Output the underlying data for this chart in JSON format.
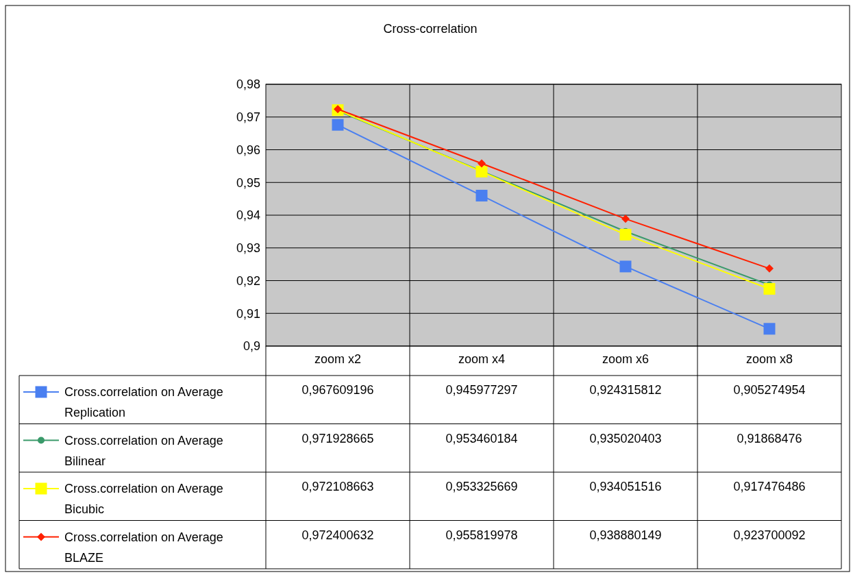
{
  "chart_data": {
    "type": "line",
    "title": "Cross-correlation",
    "categories": [
      "zoom x2",
      "zoom x4",
      "zoom x6",
      "zoom x8"
    ],
    "series": [
      {
        "name": "Cross.correlation on Average Replication",
        "color": "#4a7ff0",
        "marker": "square",
        "values": [
          0.967609196,
          0.945977297,
          0.924315812,
          0.905274954
        ],
        "value_labels": [
          "0,967609196",
          "0,945977297",
          "0,924315812",
          "0,905274954"
        ]
      },
      {
        "name": "Cross.correlation on Average Bilinear",
        "color": "#3a9a6a",
        "marker": "circle",
        "values": [
          0.971928665,
          0.953460184,
          0.935020403,
          0.91868476
        ],
        "value_labels": [
          "0,971928665",
          "0,953460184",
          "0,935020403",
          "0,91868476"
        ]
      },
      {
        "name": "Cross.correlation on Average Bicubic",
        "color": "#ffff00",
        "marker": "square",
        "values": [
          0.972108663,
          0.953325669,
          0.934051516,
          0.917476486
        ],
        "value_labels": [
          "0,972108663",
          "0,953325669",
          "0,934051516",
          "0,917476486"
        ]
      },
      {
        "name": "Cross.correlation on Average BLAZE",
        "color": "#ff2000",
        "marker": "diamond",
        "values": [
          0.972400632,
          0.955819978,
          0.938880149,
          0.923700092
        ],
        "value_labels": [
          "0,972400632",
          "0,955819978",
          "0,938880149",
          "0,923700092"
        ]
      }
    ],
    "ylim": [
      0.9,
      0.98
    ],
    "yticks": [
      {
        "value": 0.9,
        "label": "0,9"
      },
      {
        "value": 0.91,
        "label": "0,91"
      },
      {
        "value": 0.92,
        "label": "0,92"
      },
      {
        "value": 0.93,
        "label": "0,93"
      },
      {
        "value": 0.94,
        "label": "0,94"
      },
      {
        "value": 0.95,
        "label": "0,95"
      },
      {
        "value": 0.96,
        "label": "0,96"
      },
      {
        "value": 0.97,
        "label": "0,97"
      },
      {
        "value": 0.98,
        "label": "0,98"
      }
    ],
    "grid": true,
    "legend": "bottom",
    "line_style": "solid"
  }
}
